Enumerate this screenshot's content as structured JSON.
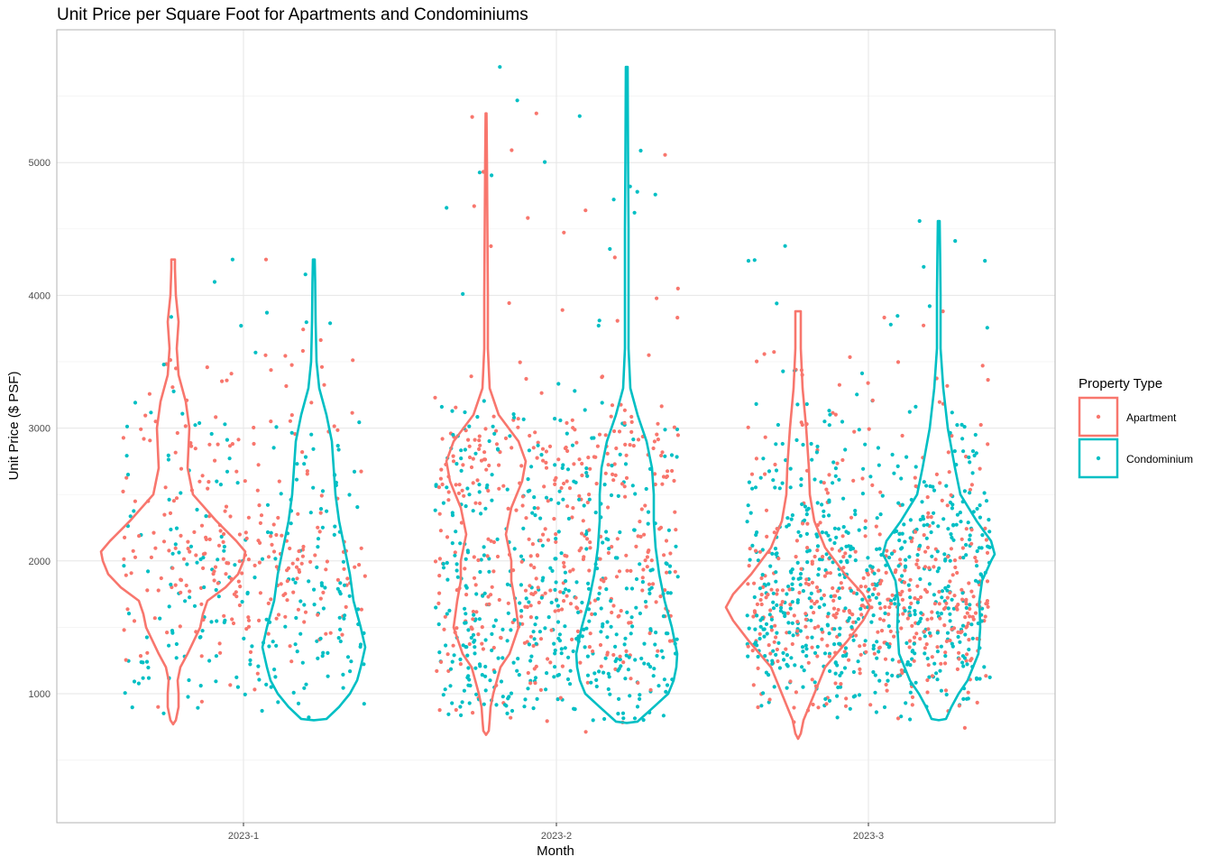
{
  "chart_data": {
    "type": "violin",
    "title": "Unit Price per Square Foot for Apartments and Condominiums",
    "xlabel": "Month",
    "ylabel": "Unit Price ($ PSF)",
    "categories": [
      "2023-1",
      "2023-2",
      "2023-3"
    ],
    "yticks": [
      1000,
      2000,
      3000,
      4000,
      5000
    ],
    "ylim": [
      200,
      6200
    ],
    "grid": true,
    "legend": {
      "title": "Property Type",
      "position": "right",
      "entries": [
        "Apartment",
        "Condominium"
      ]
    },
    "colors": {
      "Apartment": "#F8766D",
      "Condominium": "#00BFC4"
    },
    "series": [
      {
        "name": "Apartment",
        "jitter_points_per_month": [
          260,
          420,
          460
        ],
        "violins": [
          {
            "month": "2023-1",
            "min": 770,
            "max": 4270,
            "mode": 2070
          },
          {
            "month": "2023-2",
            "min": 690,
            "max": 5370,
            "mode": 2750
          },
          {
            "month": "2023-3",
            "min": 660,
            "max": 3880,
            "mode": 1650
          }
        ],
        "outliers": [
          {
            "month": "2023-1",
            "value": 4270
          },
          {
            "month": "2023-2",
            "value": 5370
          },
          {
            "month": "2023-2",
            "value": 4640
          },
          {
            "month": "2023-2",
            "value": 4370
          },
          {
            "month": "2023-3",
            "value": 3880
          }
        ]
      },
      {
        "name": "Condominium",
        "jitter_points_per_month": [
          230,
          470,
          620
        ],
        "violins": [
          {
            "month": "2023-1",
            "min": 800,
            "max": 4270,
            "mode": 1350
          },
          {
            "month": "2023-2",
            "min": 780,
            "max": 5720,
            "mode": 1300
          },
          {
            "month": "2023-3",
            "min": 800,
            "max": 4560,
            "mode": 2050
          }
        ],
        "outliers": [
          {
            "month": "2023-1",
            "value": 4270
          },
          {
            "month": "2023-2",
            "value": 5720
          },
          {
            "month": "2023-2",
            "value": 4780
          },
          {
            "month": "2023-2",
            "value": 4010
          },
          {
            "month": "2023-3",
            "value": 4560
          }
        ]
      }
    ]
  }
}
